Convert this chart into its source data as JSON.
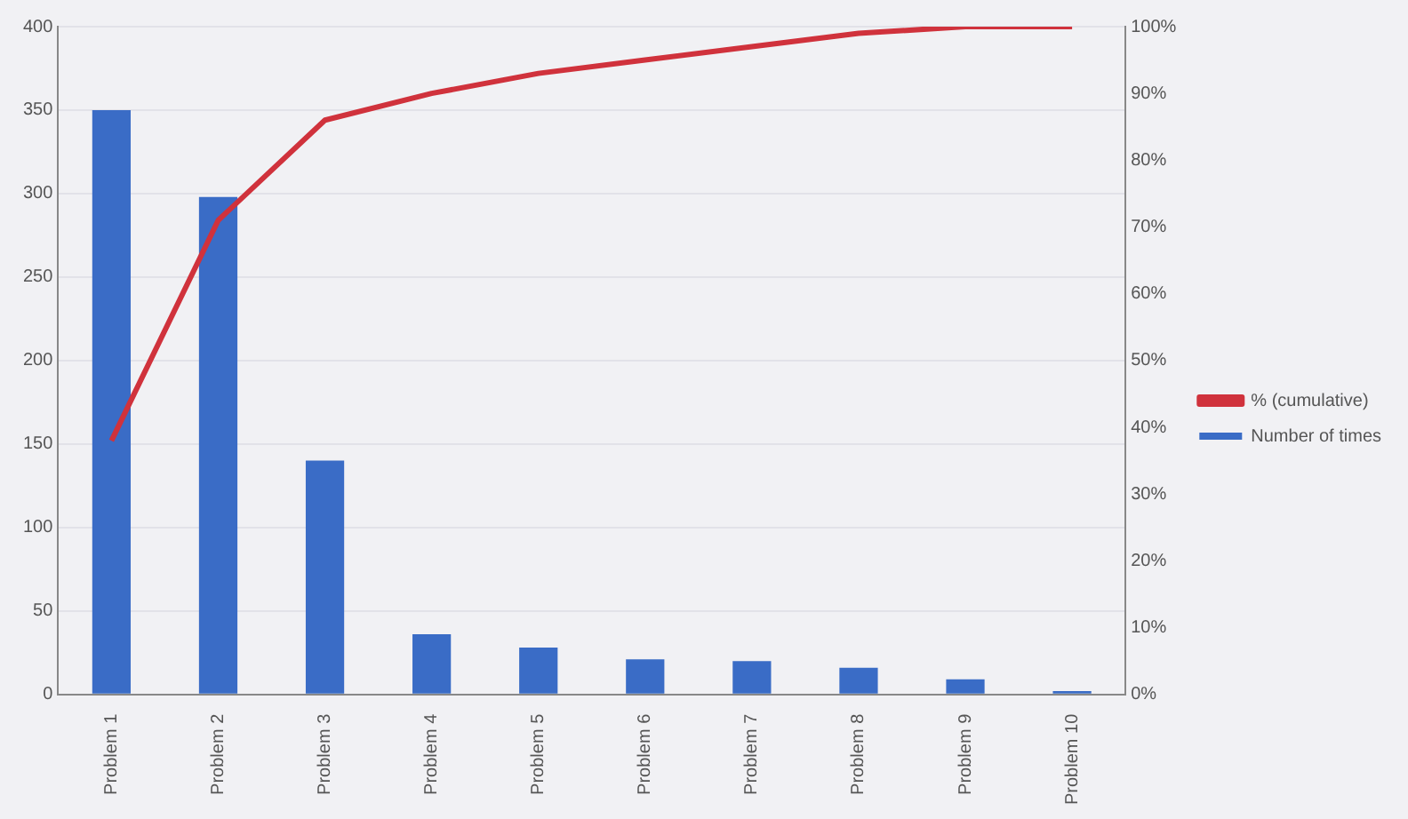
{
  "chart_data": {
    "type": "bar",
    "categories": [
      "Problem 1",
      "Problem 2",
      "Problem 3",
      "Problem 4",
      "Problem 5",
      "Problem 6",
      "Problem 7",
      "Problem 8",
      "Problem 9",
      "Problem 10"
    ],
    "series": [
      {
        "name": "Number of times",
        "color": "#3a6cc6",
        "values": [
          350,
          298,
          140,
          36,
          28,
          21,
          20,
          16,
          9,
          2
        ]
      },
      {
        "name": "% (cumulative)",
        "type": "line",
        "axis": "y2",
        "color": "#d0323c",
        "values": [
          38,
          71,
          86,
          90,
          93,
          95,
          97,
          99,
          100,
          100
        ]
      }
    ],
    "ylim": [
      0,
      400
    ],
    "yticks": [
      0,
      50,
      100,
      150,
      200,
      250,
      300,
      350,
      400
    ],
    "y2lim": [
      0,
      100
    ],
    "y2ticks": [
      {
        "value": 0,
        "label": "0%"
      },
      {
        "value": 10,
        "label": "10%"
      },
      {
        "value": 20,
        "label": "20%"
      },
      {
        "value": 30,
        "label": "30%"
      },
      {
        "value": 40,
        "label": "40%"
      },
      {
        "value": 50,
        "label": "50%"
      },
      {
        "value": 60,
        "label": "60%"
      },
      {
        "value": 70,
        "label": "70%"
      },
      {
        "value": 80,
        "label": "80%"
      },
      {
        "value": 90,
        "label": "90%"
      },
      {
        "value": 100,
        "label": "100%"
      }
    ],
    "grid": "y",
    "legend": "right",
    "marker": "none"
  }
}
